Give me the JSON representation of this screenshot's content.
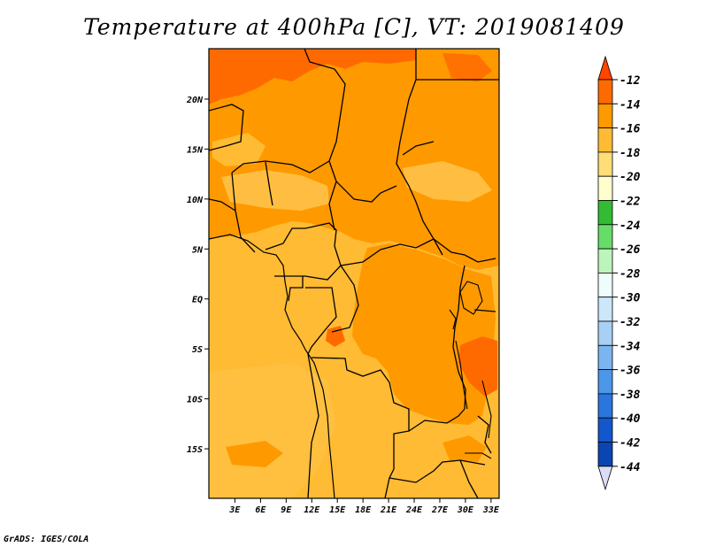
{
  "title": "Temperature at 400hPa [C], VT: 2019081409",
  "credit": "GrADS: IGES/COLA",
  "lat_labels": [
    "20N",
    "15N",
    "10N",
    "5N",
    "EQ",
    "5S",
    "10S",
    "15S"
  ],
  "lon_labels": [
    "3E",
    "6E",
    "9E",
    "12E",
    "15E",
    "18E",
    "21E",
    "24E",
    "27E",
    "30E",
    "33E"
  ],
  "colorbar": {
    "labels": [
      "-12",
      "-14",
      "-16",
      "-18",
      "-20",
      "-22",
      "-24",
      "-26",
      "-28",
      "-30",
      "-32",
      "-34",
      "-36",
      "-38",
      "-40",
      "-42",
      "-44"
    ],
    "colors": [
      "#ff4500",
      "#ff6a00",
      "#ff9900",
      "#ffbb33",
      "#ffdd77",
      "#ffffcc",
      "#33bb33",
      "#66dd66",
      "#bbf5bb",
      "#eefcfc",
      "#cce6fa",
      "#a8d0f5",
      "#7bb5ef",
      "#4c97e9",
      "#2a75de",
      "#1258cc",
      "#0a45b3",
      "#081870",
      "#dcdcf6"
    ]
  },
  "map": {
    "lon_range": [
      0,
      34
    ],
    "lat_range": [
      -20,
      25
    ],
    "colors": {
      "base": "#ffbb33",
      "warm": "#ff9900",
      "hot": "#ff6a00",
      "light": "#ffdd77"
    }
  }
}
